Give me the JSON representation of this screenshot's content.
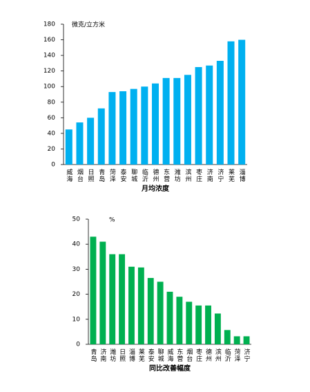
{
  "chart_data": [
    {
      "type": "bar",
      "unit": "微克/立方米",
      "x_label": "月均浓度",
      "color": "#00b0f0",
      "categories": [
        "威海",
        "烟台",
        "日照",
        "青岛",
        "菏泽",
        "泰安",
        "聊城",
        "临沂",
        "德州",
        "东营",
        "潍坊",
        "滨州",
        "枣庄",
        "济南",
        "济宁",
        "莱芜",
        "淄博"
      ],
      "values": [
        45,
        54,
        60,
        72,
        93,
        94,
        97,
        100,
        104,
        111,
        111,
        115,
        125,
        127,
        133,
        158,
        160
      ],
      "ylim": [
        0,
        180
      ],
      "yticks": [
        0,
        20,
        40,
        60,
        80,
        100,
        120,
        140,
        160,
        180
      ],
      "grid": false
    },
    {
      "type": "bar",
      "unit": "%",
      "x_label": "同比改善幅度",
      "color": "#00b050",
      "categories": [
        "青岛",
        "济南",
        "潍坊",
        "日照",
        "淄博",
        "莱芜",
        "泰安",
        "聊城",
        "威海",
        "东营",
        "烟台",
        "枣庄",
        "德州",
        "滨州",
        "临沂",
        "菏泽",
        "济宁"
      ],
      "values": [
        43,
        41,
        36,
        36,
        31,
        30.7,
        26.5,
        25,
        21,
        19,
        17,
        15.5,
        15.5,
        12.3,
        5.7,
        3.2,
        3.2
      ],
      "ylim": [
        0,
        50
      ],
      "yticks": [
        0,
        10,
        20,
        30,
        40,
        50
      ],
      "grid": false
    }
  ]
}
